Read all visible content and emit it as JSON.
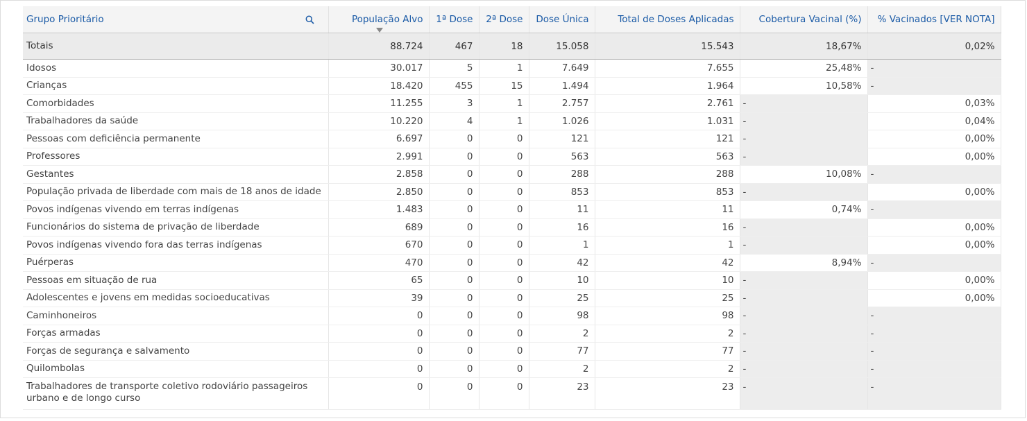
{
  "table": {
    "headers": [
      "Grupo Prioritário",
      "População Alvo",
      "1ª Dose",
      "2ª Dose",
      "Dose Única",
      "Total de Doses Aplicadas",
      "Cobertura Vacinal (%)",
      "% Vacinados [VER NOTA]"
    ],
    "totals": [
      "Totais",
      "88.724",
      "467",
      "18",
      "15.058",
      "15.543",
      "18,67%",
      "0,02%"
    ],
    "rows": [
      [
        "Idosos",
        "30.017",
        "5",
        "1",
        "7.649",
        "7.655",
        "25,48%",
        "-"
      ],
      [
        "Crianças",
        "18.420",
        "455",
        "15",
        "1.494",
        "1.964",
        "10,58%",
        "-"
      ],
      [
        "Comorbidades",
        "11.255",
        "3",
        "1",
        "2.757",
        "2.761",
        "-",
        "0,03%"
      ],
      [
        "Trabalhadores da saúde",
        "10.220",
        "4",
        "1",
        "1.026",
        "1.031",
        "-",
        "0,04%"
      ],
      [
        "Pessoas com deficiência permanente",
        "6.697",
        "0",
        "0",
        "121",
        "121",
        "-",
        "0,00%"
      ],
      [
        "Professores",
        "2.991",
        "0",
        "0",
        "563",
        "563",
        "-",
        "0,00%"
      ],
      [
        "Gestantes",
        "2.858",
        "0",
        "0",
        "288",
        "288",
        "10,08%",
        "-"
      ],
      [
        "População privada de liberdade com mais de 18 anos de idade",
        "2.850",
        "0",
        "0",
        "853",
        "853",
        "-",
        "0,00%"
      ],
      [
        "Povos indígenas vivendo em terras indígenas",
        "1.483",
        "0",
        "0",
        "11",
        "11",
        "0,74%",
        "-"
      ],
      [
        "Funcionários do sistema de privação de liberdade",
        "689",
        "0",
        "0",
        "16",
        "16",
        "-",
        "0,00%"
      ],
      [
        "Povos indígenas vivendo fora das terras indígenas",
        "670",
        "0",
        "0",
        "1",
        "1",
        "-",
        "0,00%"
      ],
      [
        "Puérperas",
        "470",
        "0",
        "0",
        "42",
        "42",
        "8,94%",
        "-"
      ],
      [
        "Pessoas em situação de rua",
        "65",
        "0",
        "0",
        "10",
        "10",
        "-",
        "0,00%"
      ],
      [
        "Adolescentes e jovens em medidas socioeducativas",
        "39",
        "0",
        "0",
        "25",
        "25",
        "-",
        "0,00%"
      ],
      [
        "Caminhoneiros",
        "0",
        "0",
        "0",
        "98",
        "98",
        "-",
        "-"
      ],
      [
        "Forças armadas",
        "0",
        "0",
        "0",
        "2",
        "2",
        "-",
        "-"
      ],
      [
        "Forças de segurança e salvamento",
        "0",
        "0",
        "0",
        "77",
        "77",
        "-",
        "-"
      ],
      [
        "Quilombolas",
        "0",
        "0",
        "0",
        "2",
        "2",
        "-",
        "-"
      ],
      [
        "Trabalhadores de transporte coletivo rodoviário passageiros urbano e de longo curso",
        "0",
        "0",
        "0",
        "23",
        "23",
        "-",
        "-"
      ]
    ]
  }
}
